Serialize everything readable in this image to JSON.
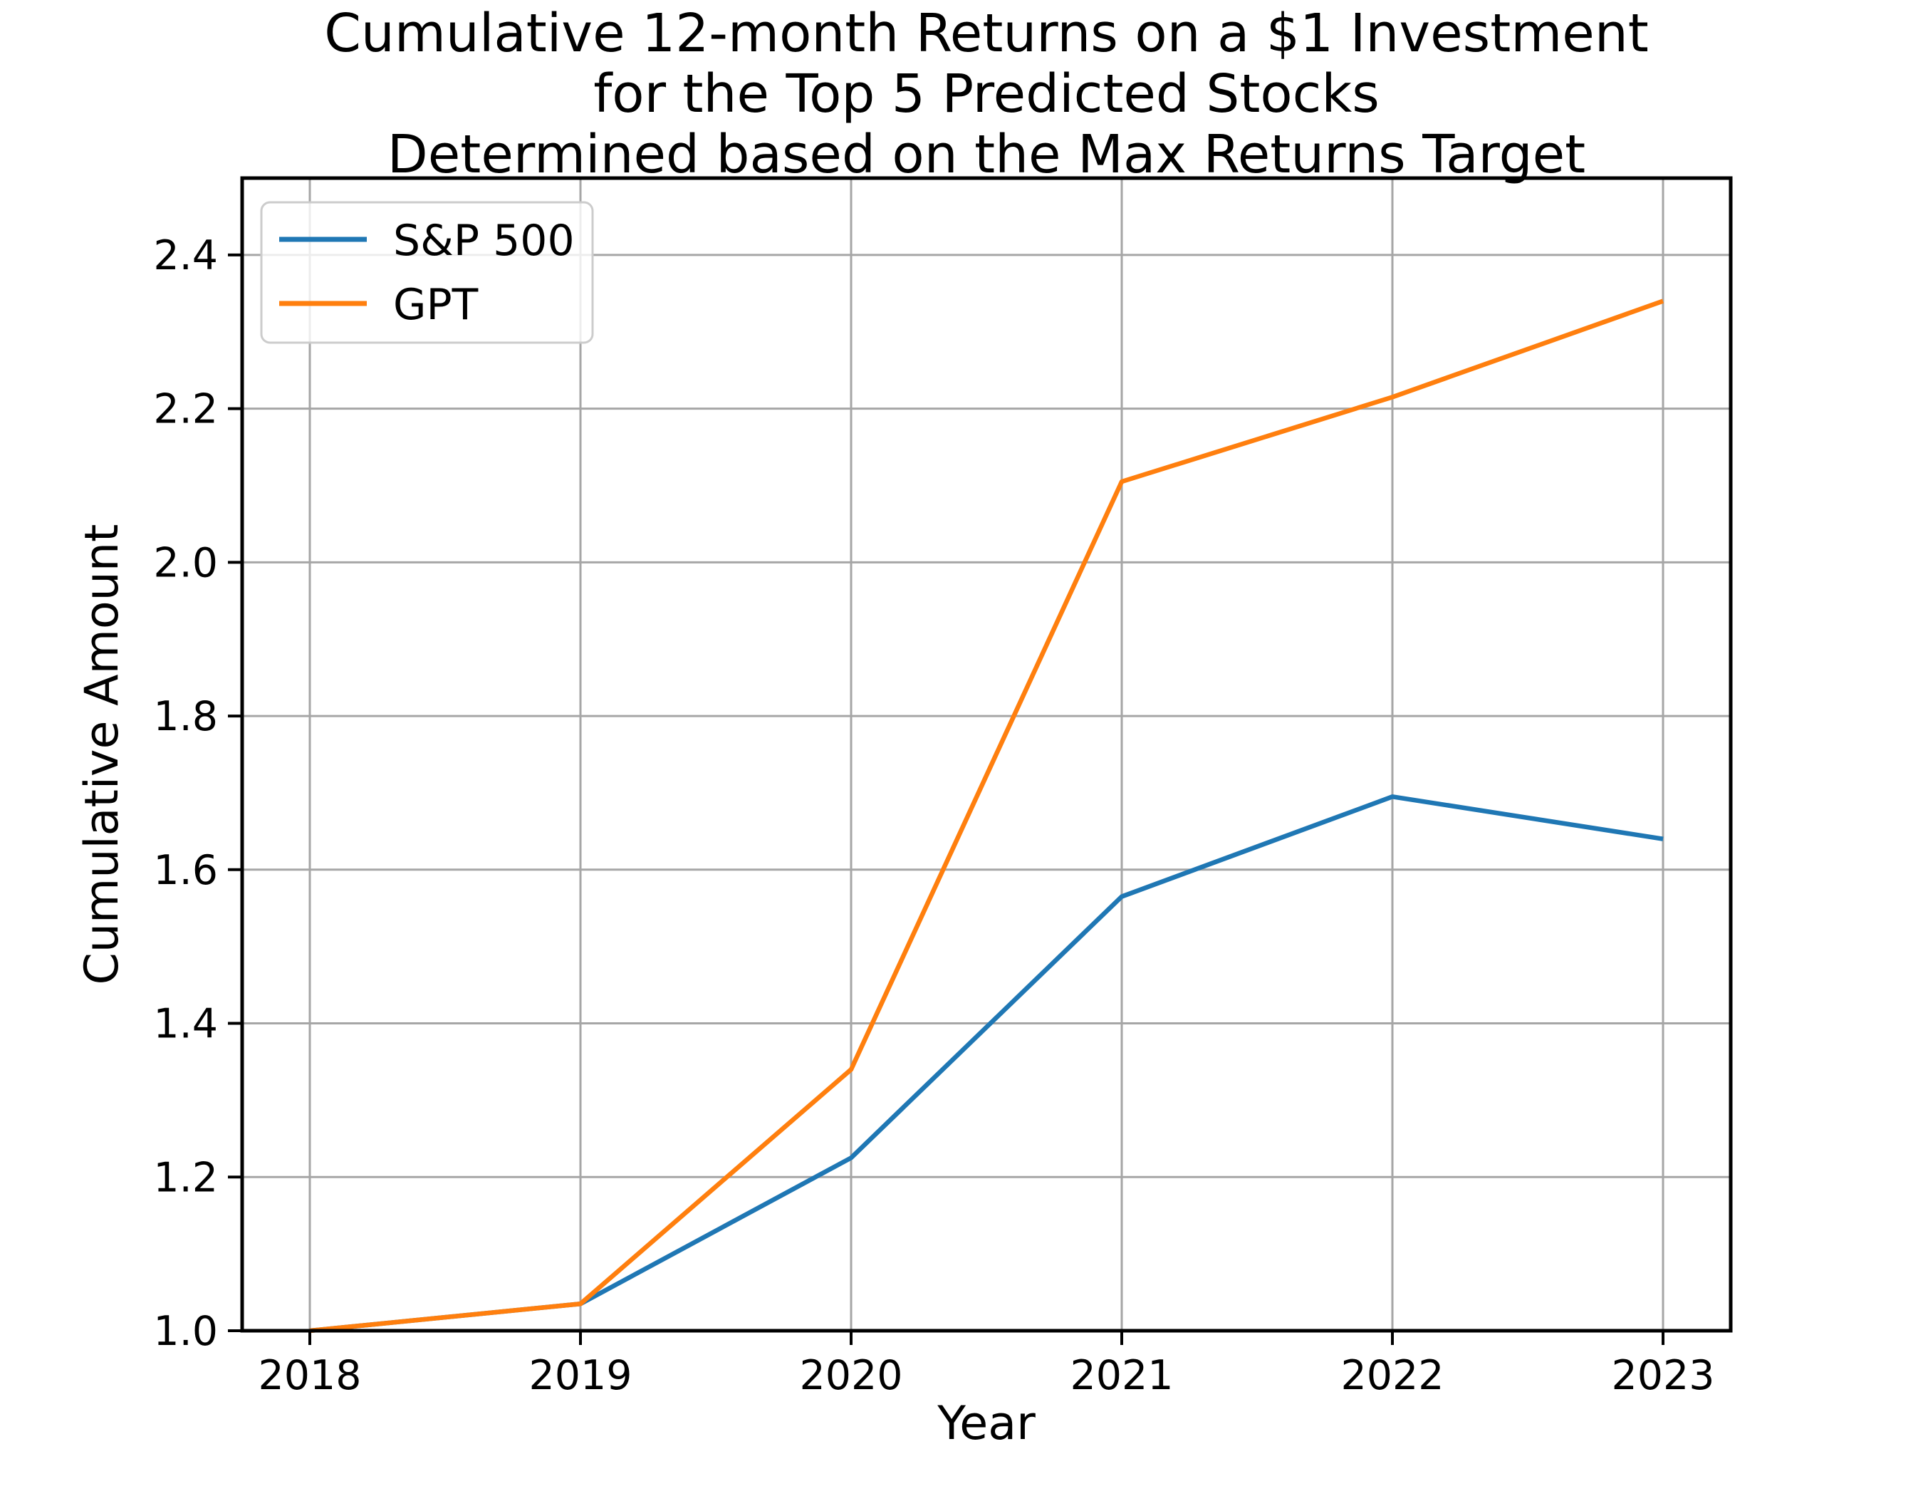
{
  "figure": {
    "background": "#ffffff"
  },
  "chart_data": {
    "type": "line",
    "title": "Cumulative 12-month Returns on a $1 Investment\nfor the Top 5 Predicted Stocks\nDetermined based on the Max Returns Target",
    "xlabel": "Year",
    "ylabel": "Cumulative Amount",
    "x": [
      2018,
      2019,
      2020,
      2021,
      2022,
      2023
    ],
    "series": [
      {
        "name": "S&P 500",
        "color": "#1f77b4",
        "values": [
          1.0,
          1.035,
          1.225,
          1.565,
          1.695,
          1.64
        ]
      },
      {
        "name": "GPT",
        "color": "#ff7f0e",
        "values": [
          1.0,
          1.035,
          1.34,
          2.105,
          2.215,
          2.34
        ]
      }
    ],
    "xlim": [
      2017.75,
      2023.25
    ],
    "ylim": [
      1.0,
      2.5
    ],
    "xticks": [
      2018,
      2019,
      2020,
      2021,
      2022,
      2023
    ],
    "xtick_labels": [
      "2018",
      "2019",
      "2020",
      "2021",
      "2022",
      "2023"
    ],
    "yticks": [
      1.0,
      1.2,
      1.4,
      1.6,
      1.8,
      2.0,
      2.2,
      2.4
    ],
    "ytick_labels": [
      "1.0",
      "1.2",
      "1.4",
      "1.6",
      "1.8",
      "2.0",
      "2.2",
      "2.4"
    ],
    "grid": true,
    "grid_color": "#a6a6a6",
    "axis_color": "#000000",
    "legend_position": "upper left",
    "legend_border_color": "#cccccc"
  }
}
